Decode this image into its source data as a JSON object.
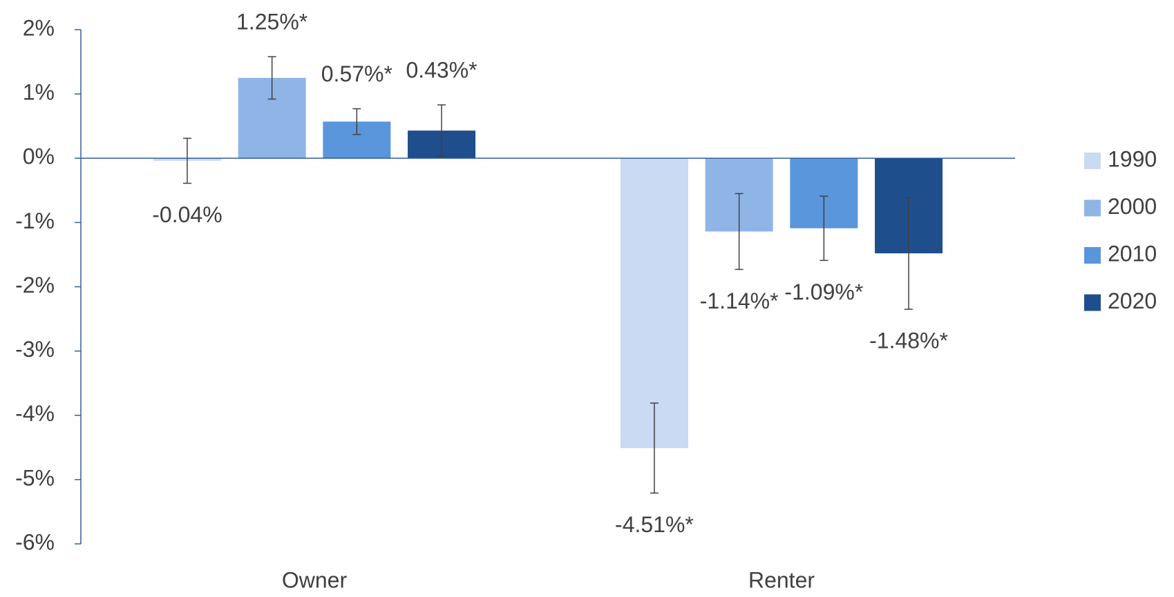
{
  "chart_data": {
    "type": "bar",
    "categories": [
      "Owner",
      "Renter"
    ],
    "series": [
      {
        "name": "1990",
        "color": "#c9daf2",
        "values": [
          -0.04,
          -4.51
        ],
        "value_labels": [
          "-0.04%",
          "-4.51%*"
        ],
        "errors": [
          0.35,
          0.7
        ]
      },
      {
        "name": "2000",
        "color": "#8fb5e6",
        "values": [
          1.25,
          -1.14
        ],
        "value_labels": [
          "1.25%*",
          "-1.14%*"
        ],
        "errors": [
          0.33,
          0.59
        ]
      },
      {
        "name": "2010",
        "color": "#5a96dc",
        "values": [
          0.57,
          -1.09
        ],
        "value_labels": [
          "0.57%*",
          "-1.09%*"
        ],
        "errors": [
          0.2,
          0.5
        ]
      },
      {
        "name": "2020",
        "color": "#1f4e8c",
        "values": [
          0.43,
          -1.48
        ],
        "value_labels": [
          "0.43%*",
          "-1.48%*"
        ],
        "errors": [
          0.4,
          0.87
        ]
      }
    ],
    "ylim": [
      -6,
      2
    ],
    "yticks": [
      {
        "value": -6,
        "label": "-6%"
      },
      {
        "value": -5,
        "label": "-5%"
      },
      {
        "value": -4,
        "label": "-4%"
      },
      {
        "value": -3,
        "label": "-3%"
      },
      {
        "value": -2,
        "label": "-2%"
      },
      {
        "value": -1,
        "label": "-1%"
      },
      {
        "value": 0,
        "label": "0%"
      },
      {
        "value": 1,
        "label": "1%"
      },
      {
        "value": 2,
        "label": "2%"
      }
    ],
    "grid": false,
    "legend": "right"
  }
}
